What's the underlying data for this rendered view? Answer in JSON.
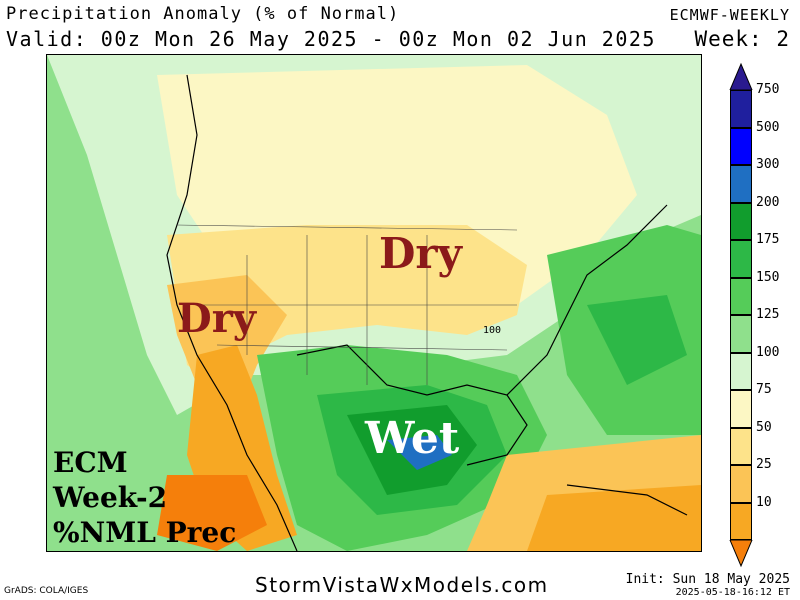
{
  "header": {
    "title": "Precipitation Anomaly (% of Normal)",
    "model": "ECMWF-WEEKLY",
    "valid": "Valid: 00z Mon 26 May 2025 - 00z Mon 02 Jun 2025",
    "week": "Week: 2"
  },
  "map": {
    "labels": {
      "dry_midwest": "Dry",
      "dry_southwest": "Dry",
      "wet_gulf": "Wet"
    },
    "contour_label": "100",
    "ecm_block": [
      "ECM",
      "Week-2",
      "%NML Prec"
    ]
  },
  "legend": {
    "levels": [
      {
        "label": "750",
        "color": "#1f1f9e"
      },
      {
        "label": "500",
        "color": "#0000ff"
      },
      {
        "label": "300",
        "color": "#1f6fc2"
      },
      {
        "label": "200",
        "color": "#119d2d"
      },
      {
        "label": "175",
        "color": "#2db847"
      },
      {
        "label": "150",
        "color": "#55cc59"
      },
      {
        "label": "125",
        "color": "#8fe08c"
      },
      {
        "label": "100",
        "color": "#d6f5d0"
      },
      {
        "label": "75",
        "color": "#fcf7c4"
      },
      {
        "label": "50",
        "color": "#fde38a"
      },
      {
        "label": "25",
        "color": "#fbc456"
      },
      {
        "label": "10",
        "color": "#f7a823"
      }
    ],
    "top_arrow_color": "#2a1a8f",
    "bottom_arrow_color": "#f57f0b"
  },
  "footer": {
    "site": "StormVistaWxModels.com",
    "grads": "GrADS: COLA/IGES",
    "init": "Init: Sun 18 May 2025",
    "stamp": "2025-05-18-16:12 ET"
  }
}
